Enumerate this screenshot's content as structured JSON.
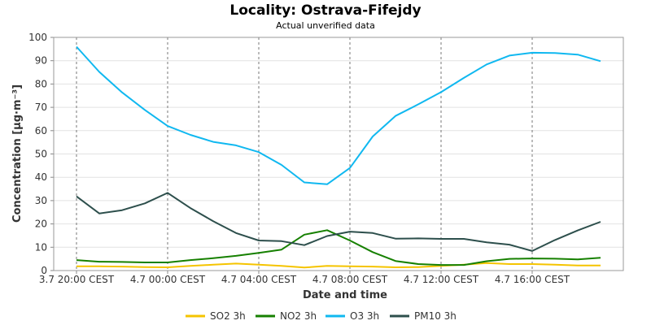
{
  "chart_data": {
    "type": "line",
    "title": "Locality: Ostrava-Fifejdy",
    "subtitle": "Actual unverified data",
    "xlabel": "Date and time",
    "ylabel": "Concentration [µg·m⁻³]",
    "ylim": [
      0,
      100
    ],
    "yticks": [
      0,
      10,
      20,
      30,
      40,
      50,
      60,
      70,
      80,
      90,
      100
    ],
    "xticks": [
      {
        "label": "3.7 20:00 CEST",
        "hour": 20
      },
      {
        "label": "4.7 00:00 CEST",
        "hour": 24
      },
      {
        "label": "4.7 04:00 CEST",
        "hour": 28
      },
      {
        "label": "4.7 08:00 CEST",
        "hour": 32
      },
      {
        "label": "4.7 12:00 CEST",
        "hour": 36
      },
      {
        "label": "4.7 16:00 CEST",
        "hour": 40
      }
    ],
    "xrange_hours": [
      19,
      44
    ],
    "x_hours": [
      20,
      21,
      22,
      23,
      24,
      25,
      26,
      27,
      28,
      29,
      30,
      31,
      32,
      33,
      34,
      35,
      36,
      37,
      38,
      39,
      40,
      41,
      42,
      43
    ],
    "grid": true,
    "legend_position": "bottom",
    "series": [
      {
        "name": "SO2 3h",
        "color": "#f5c400",
        "values": [
          1.8,
          1.8,
          1.7,
          1.5,
          1.4,
          2.0,
          2.5,
          3.0,
          2.5,
          2.0,
          1.3,
          2.0,
          1.8,
          1.7,
          1.4,
          1.5,
          2.0,
          2.5,
          3.2,
          2.8,
          2.8,
          2.5,
          2.2,
          2.2
        ]
      },
      {
        "name": "NO2 3h",
        "color": "#168000",
        "values": [
          4.5,
          3.8,
          3.7,
          3.5,
          3.5,
          4.5,
          5.3,
          6.3,
          7.6,
          9.0,
          15.4,
          17.3,
          12.9,
          7.9,
          4.1,
          2.8,
          2.4,
          2.4,
          4.0,
          5.0,
          5.2,
          5.1,
          4.8,
          5.5
        ]
      },
      {
        "name": "O3 3h",
        "color": "#10b8f0",
        "values": [
          96.0,
          85.2,
          76.4,
          68.9,
          62.0,
          58.2,
          55.2,
          53.7,
          50.8,
          45.3,
          37.8,
          37.0,
          44.0,
          57.5,
          66.3,
          71.3,
          76.5,
          82.6,
          88.4,
          92.2,
          93.4,
          93.3,
          92.6,
          89.8
        ]
      },
      {
        "name": "PM10 3h",
        "color": "#2d4f4c",
        "values": [
          31.8,
          24.5,
          25.9,
          28.8,
          33.3,
          26.8,
          21.2,
          16.1,
          12.9,
          12.6,
          10.9,
          14.8,
          16.7,
          16.1,
          13.7,
          13.8,
          13.6,
          13.6,
          12.1,
          11.1,
          8.4,
          13.1,
          17.2,
          20.9
        ]
      }
    ]
  }
}
